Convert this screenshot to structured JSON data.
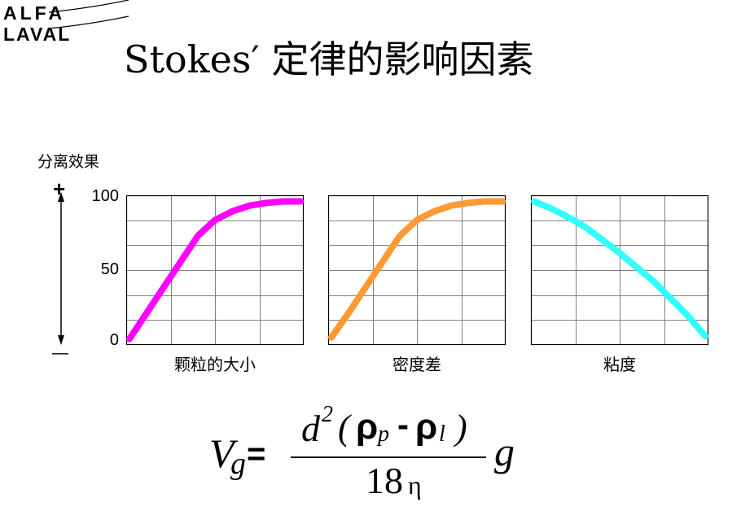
{
  "logo": {
    "line1": "ALFA",
    "line2": "LAVAL"
  },
  "title": "Stokes′ 定律的影响因素",
  "axis": {
    "label": "分离效果",
    "plus": "+",
    "minus": "—",
    "ticks": [
      "100",
      "50",
      "0"
    ]
  },
  "colors": {
    "curve1": "#ff00ff",
    "curve2": "#ff9933",
    "curve3": "#33ffff"
  },
  "chart_data": [
    {
      "type": "line",
      "xlabel": "颗粒的大小",
      "ylim": [
        0,
        100
      ],
      "grid": true,
      "color": "#ff00ff",
      "x": [
        0,
        0.1,
        0.2,
        0.3,
        0.4,
        0.5,
        0.6,
        0.7,
        0.8,
        0.9,
        1.0
      ],
      "values": [
        2,
        20,
        38,
        56,
        74,
        85,
        91,
        95,
        97,
        98,
        98
      ]
    },
    {
      "type": "line",
      "xlabel": "密度差",
      "ylim": [
        0,
        100
      ],
      "grid": true,
      "color": "#ff9933",
      "x": [
        0,
        0.1,
        0.2,
        0.3,
        0.4,
        0.5,
        0.6,
        0.7,
        0.8,
        0.9,
        1.0
      ],
      "values": [
        3,
        20,
        38,
        56,
        74,
        85,
        91,
        95,
        97,
        98,
        98
      ]
    },
    {
      "type": "line",
      "xlabel": "粘度",
      "ylim": [
        0,
        100
      ],
      "grid": true,
      "color": "#33ffff",
      "x": [
        0,
        0.1,
        0.2,
        0.3,
        0.4,
        0.5,
        0.6,
        0.7,
        0.8,
        0.9,
        1.0
      ],
      "values": [
        98,
        93,
        87,
        80,
        71,
        62,
        52,
        42,
        30,
        18,
        4
      ]
    }
  ],
  "formula": {
    "lhs": "V",
    "lhs_sub": "g",
    "equals": "=",
    "num_d": "d",
    "num_exp": "2",
    "open_paren": "(",
    "rho1": "ρ",
    "rho1_sub": "p",
    "minus": "-",
    "rho2": "ρ",
    "rho2_sub": "l",
    "close_paren": ")",
    "den_num": "18",
    "den_eta": "η",
    "g": "g"
  }
}
